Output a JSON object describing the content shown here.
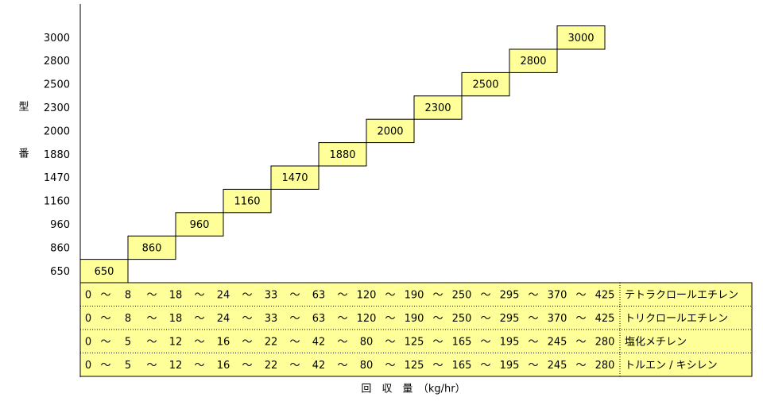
{
  "y_axis_title": [
    "型",
    "番"
  ],
  "x_axis_title": "回　収　量　（kg/hr）",
  "models": [
    "650",
    "860",
    "960",
    "1160",
    "1470",
    "1880",
    "2000",
    "2300",
    "2500",
    "2800",
    "3000"
  ],
  "separator": "～",
  "table": {
    "rows": [
      {
        "values": [
          "0",
          "8",
          "18",
          "24",
          "33",
          "63",
          "120",
          "190",
          "250",
          "295",
          "370",
          "425"
        ],
        "solvent": "テトラクロールエチレン"
      },
      {
        "values": [
          "0",
          "8",
          "18",
          "24",
          "33",
          "63",
          "120",
          "190",
          "250",
          "295",
          "370",
          "425"
        ],
        "solvent": "トリクロールエチレン"
      },
      {
        "values": [
          "0",
          "5",
          "12",
          "16",
          "22",
          "42",
          "80",
          "125",
          "165",
          "195",
          "245",
          "280"
        ],
        "solvent": "塩化メチレン"
      },
      {
        "values": [
          "0",
          "5",
          "12",
          "16",
          "22",
          "42",
          "80",
          "125",
          "165",
          "195",
          "245",
          "280"
        ],
        "solvent": "トルエン / キシレン"
      }
    ]
  }
}
